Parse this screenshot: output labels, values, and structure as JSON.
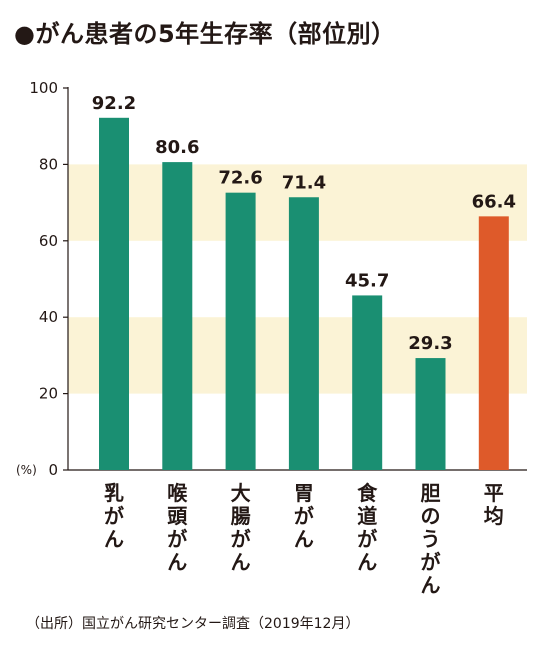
{
  "title": "●がん患者の5年生存率（部位別）",
  "source": "（出所）国立がん研究センター調査（2019年12月）",
  "colors": {
    "bar": "#1a8f72",
    "highlight": "#de5a2a",
    "band": "#fbf3d6",
    "text": "#231815"
  },
  "chart_data": {
    "type": "bar",
    "categories": [
      "乳がん",
      "喉頭がん",
      "大腸がん",
      "胃がん",
      "食道がん",
      "胆のうがん",
      "平均"
    ],
    "values": [
      92.2,
      80.6,
      72.6,
      71.4,
      45.7,
      29.3,
      66.4
    ],
    "value_labels": [
      "92.2",
      "80.6",
      "72.6",
      "71.4",
      "45.7",
      "29.3",
      "66.4"
    ],
    "highlight_category": "平均",
    "yticks": [
      "0",
      "20",
      "40",
      "60",
      "80",
      "100"
    ],
    "ytick_values": [
      0,
      20,
      40,
      60,
      80,
      100
    ],
    "yunit": "(%)",
    "ylim": [
      0,
      100
    ],
    "shaded_bands": [
      [
        20,
        40
      ],
      [
        60,
        80
      ]
    ],
    "title": "●がん患者の5年生存率（部位別）",
    "xlabel": "",
    "ylabel": ""
  }
}
